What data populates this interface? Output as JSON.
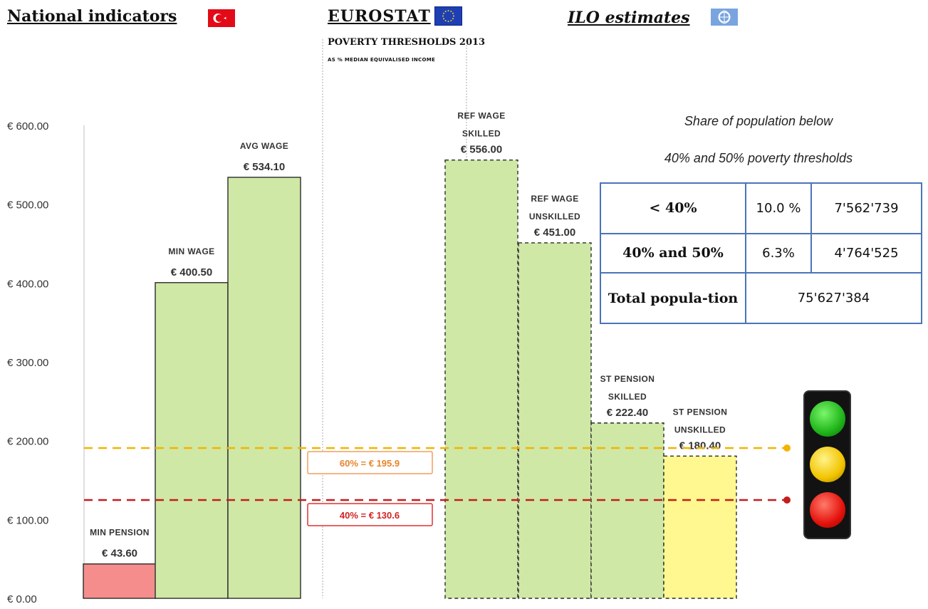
{
  "headers": {
    "national": "National indicators",
    "eurostat": "EUROSTAT",
    "eurostat_title": "POVERTY THRESHOLDS 2013",
    "eurostat_sub": "AS % MEDIAN EQUIVALISED INCOME",
    "ilo": "ILO estimates"
  },
  "ilo_panel": {
    "share_line1": "Share of population below",
    "share_line2": "40% and 50% poverty thresholds",
    "rows": [
      {
        "label": "< 40%",
        "pct": "10.0 %",
        "count": "7'562'739"
      },
      {
        "label": "40% and 50%",
        "pct": "6.3%",
        "count": "4'764'525"
      }
    ],
    "total_label": "Total popula-tion",
    "total_value": "75'627'384"
  },
  "colors": {
    "bar_green": "#cfe8a6",
    "bar_red": "#f58d8d",
    "bar_yellow": "#fff78f",
    "line_orange": "#f5b300",
    "line_red": "#c61c1c",
    "table_border": "#4a74b8"
  },
  "chart_data": {
    "type": "bar",
    "ylim": [
      0,
      600
    ],
    "yticks": [
      "€ 0.00",
      "€ 100.00",
      "€ 200.00",
      "€ 300.00",
      "€ 400.00",
      "€ 500.00",
      "€ 600.00"
    ],
    "ytick_values": [
      0,
      100,
      200,
      300,
      400,
      500,
      600
    ],
    "bars": [
      {
        "label1": "MIN PENSION",
        "label2": "",
        "value_label": "€ 43.60",
        "value": 43.6,
        "color": "red",
        "dashed": false
      },
      {
        "label1": "MIN WAGE",
        "label2": "",
        "value_label": "€ 400.50",
        "value": 400.5,
        "color": "green",
        "dashed": false
      },
      {
        "label1": "AVG WAGE",
        "label2": "",
        "value_label": "€ 534.10",
        "value": 534.1,
        "color": "green",
        "dashed": false
      },
      {
        "label1": "REF WAGE",
        "label2": "SKILLED",
        "value_label": "€ 556.00",
        "value": 556.0,
        "color": "green",
        "dashed": true
      },
      {
        "label1": "REF WAGE",
        "label2": "UNSKILLED",
        "value_label": "€ 451.00",
        "value": 451.0,
        "color": "green",
        "dashed": true
      },
      {
        "label1": "ST PENSION",
        "label2": "SKILLED",
        "value_label": "€ 222.40",
        "value": 222.4,
        "color": "green",
        "dashed": true
      },
      {
        "label1": "ST PENSION",
        "label2": "UNSKILLED",
        "value_label": "€ 180.40",
        "value": 180.4,
        "color": "yellow",
        "dashed": true
      }
    ],
    "thresholds": [
      {
        "label": "60% = € 195.9",
        "value": 195.9,
        "color": "orange"
      },
      {
        "label": "40% = € 130.6",
        "value": 130.6,
        "color": "red"
      }
    ]
  }
}
